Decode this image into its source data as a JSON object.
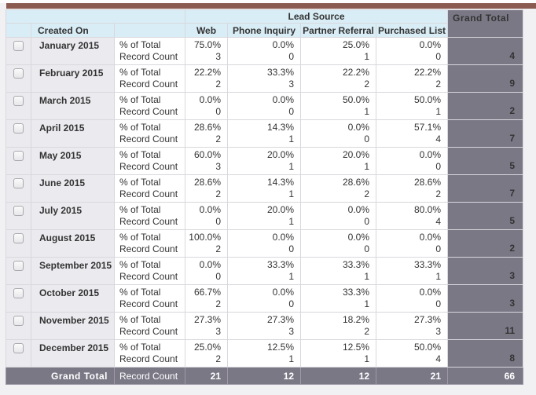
{
  "colors": {
    "top_bar": "#8b5a50",
    "header_bg": "#d9edf6",
    "grand_total_bg": "#7b7886",
    "row_label_bg": "#ebeaef"
  },
  "report": {
    "col_group_title": "Lead Source",
    "row_header": "Created On",
    "grand_total_label": "Grand Total",
    "metric_labels": [
      "% of Total",
      "Record Count"
    ],
    "columns": [
      "Web",
      "Phone Inquiry",
      "Partner Referral",
      "Purchased List"
    ],
    "rows": [
      {
        "label": "January 2015",
        "pct": [
          "75.0%",
          "0.0%",
          "25.0%",
          "0.0%"
        ],
        "counts": [
          "3",
          "0",
          "1",
          "0"
        ],
        "total": "4"
      },
      {
        "label": "February 2015",
        "pct": [
          "22.2%",
          "33.3%",
          "22.2%",
          "22.2%"
        ],
        "counts": [
          "2",
          "3",
          "2",
          "2"
        ],
        "total": "9"
      },
      {
        "label": "March 2015",
        "pct": [
          "0.0%",
          "0.0%",
          "50.0%",
          "50.0%"
        ],
        "counts": [
          "0",
          "0",
          "1",
          "1"
        ],
        "total": "2"
      },
      {
        "label": "April 2015",
        "pct": [
          "28.6%",
          "14.3%",
          "0.0%",
          "57.1%"
        ],
        "counts": [
          "2",
          "1",
          "0",
          "4"
        ],
        "total": "7"
      },
      {
        "label": "May 2015",
        "pct": [
          "60.0%",
          "20.0%",
          "20.0%",
          "0.0%"
        ],
        "counts": [
          "3",
          "1",
          "1",
          "0"
        ],
        "total": "5"
      },
      {
        "label": "June 2015",
        "pct": [
          "28.6%",
          "14.3%",
          "28.6%",
          "28.6%"
        ],
        "counts": [
          "2",
          "1",
          "2",
          "2"
        ],
        "total": "7"
      },
      {
        "label": "July 2015",
        "pct": [
          "0.0%",
          "20.0%",
          "0.0%",
          "80.0%"
        ],
        "counts": [
          "0",
          "1",
          "0",
          "4"
        ],
        "total": "5"
      },
      {
        "label": "August 2015",
        "pct": [
          "100.0%",
          "0.0%",
          "0.0%",
          "0.0%"
        ],
        "counts": [
          "2",
          "0",
          "0",
          "0"
        ],
        "total": "2"
      },
      {
        "label": "September 2015",
        "pct": [
          "0.0%",
          "33.3%",
          "33.3%",
          "33.3%"
        ],
        "counts": [
          "0",
          "1",
          "1",
          "1"
        ],
        "total": "3"
      },
      {
        "label": "October 2015",
        "pct": [
          "66.7%",
          "0.0%",
          "33.3%",
          "0.0%"
        ],
        "counts": [
          "2",
          "0",
          "1",
          "0"
        ],
        "total": "3"
      },
      {
        "label": "November 2015",
        "pct": [
          "27.3%",
          "27.3%",
          "18.2%",
          "27.3%"
        ],
        "counts": [
          "3",
          "3",
          "2",
          "3"
        ],
        "total": "11"
      },
      {
        "label": "December 2015",
        "pct": [
          "25.0%",
          "12.5%",
          "12.5%",
          "50.0%"
        ],
        "counts": [
          "2",
          "1",
          "1",
          "4"
        ],
        "total": "8"
      }
    ],
    "footer": {
      "label": "Grand Total",
      "metric": "Record Count",
      "counts": [
        "21",
        "12",
        "12",
        "21"
      ],
      "total": "66"
    }
  }
}
